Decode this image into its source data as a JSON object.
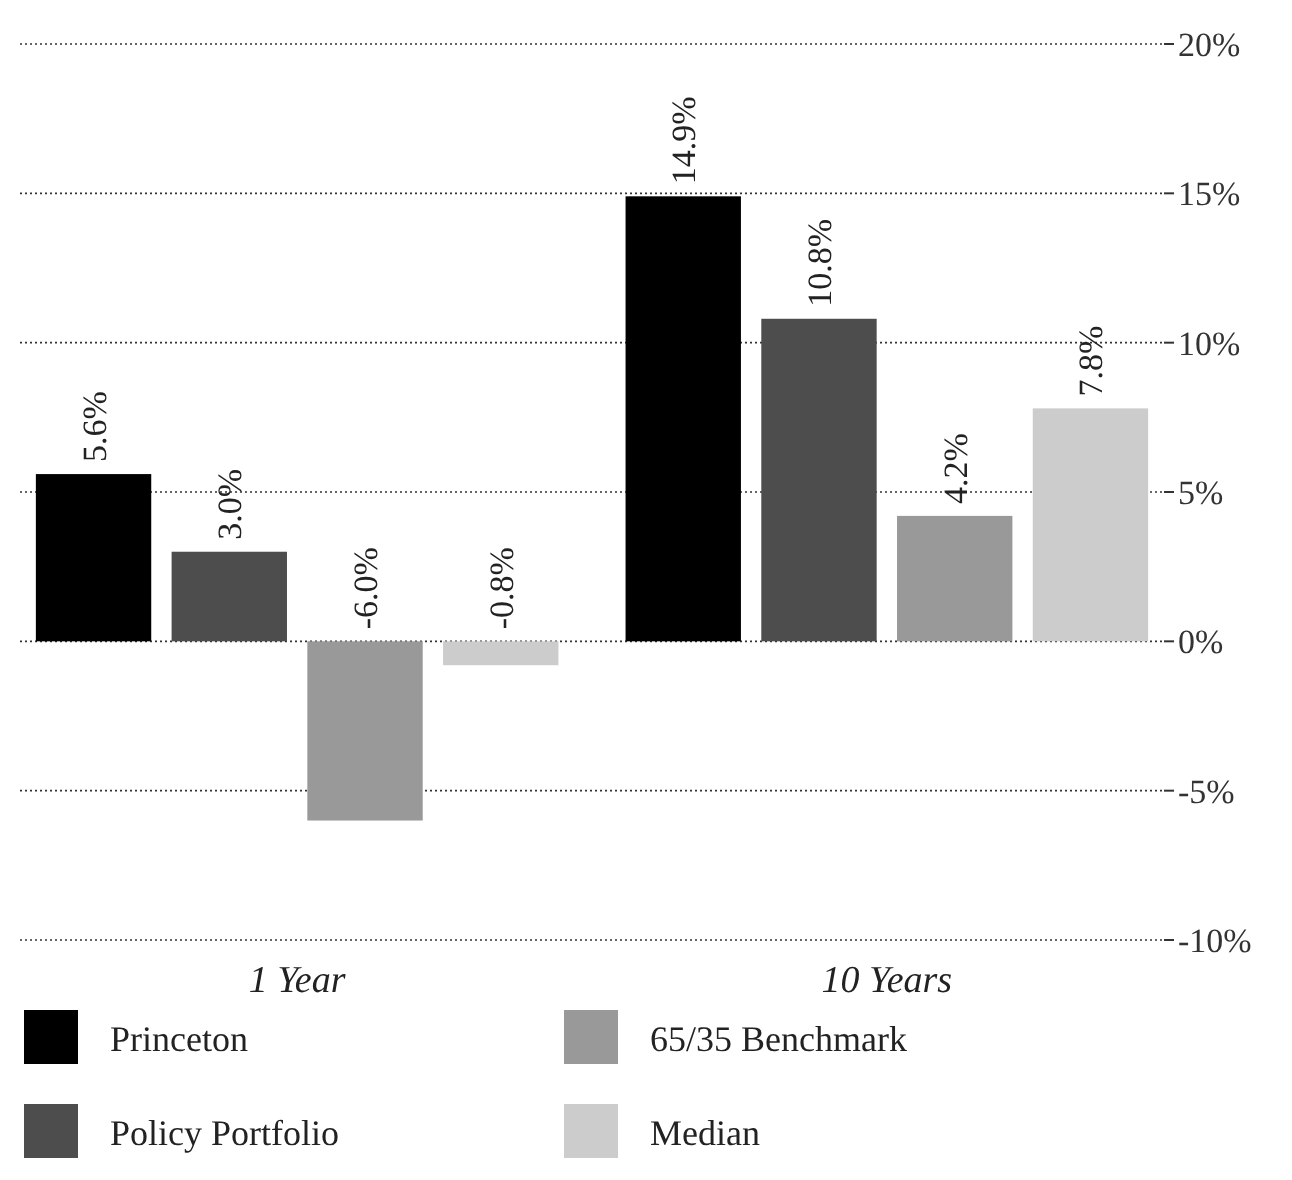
{
  "chart_data": {
    "type": "bar",
    "categories": [
      "1 Year",
      "10 Years"
    ],
    "series": [
      {
        "name": "Princeton",
        "color": "#000000",
        "values": [
          5.6,
          14.9
        ],
        "value_labels": [
          "5.6%",
          "14.9%"
        ]
      },
      {
        "name": "Policy Portfolio",
        "color": "#4d4d4d",
        "values": [
          3.0,
          10.8
        ],
        "value_labels": [
          "3.0%",
          "10.8%"
        ]
      },
      {
        "name": "65/35 Benchmark",
        "color": "#999999",
        "values": [
          -6.0,
          4.2
        ],
        "value_labels": [
          "-6.0%",
          "4.2%"
        ]
      },
      {
        "name": "Median",
        "color": "#cccccc",
        "values": [
          -0.8,
          7.8
        ],
        "value_labels": [
          "-0.8%",
          "7.8%"
        ]
      }
    ],
    "ylim": [
      -10,
      20
    ],
    "yticks": [
      {
        "value": -10,
        "label": "-10%"
      },
      {
        "value": -5,
        "label": "-5%"
      },
      {
        "value": 0,
        "label": "0%"
      },
      {
        "value": 5,
        "label": "5%"
      },
      {
        "value": 10,
        "label": "10%"
      },
      {
        "value": 15,
        "label": "15%"
      },
      {
        "value": 20,
        "label": "20%"
      }
    ],
    "grid": "y",
    "legend": "bottom"
  }
}
